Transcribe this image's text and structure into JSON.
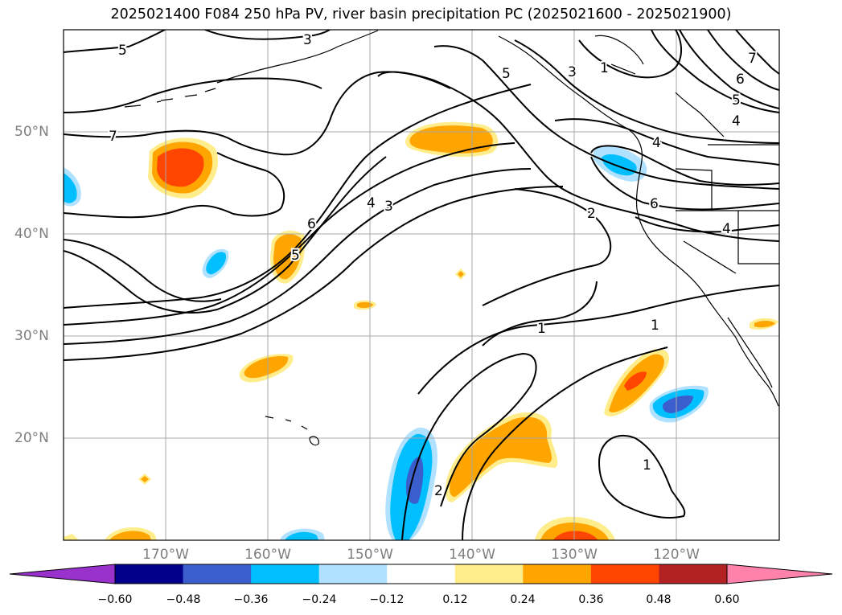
{
  "title": "2025021400 F084 250 hPa PV, river basin precipitation PC (2025021600 - 2025021900)",
  "longitude_labels": [
    "170°W",
    "160°W",
    "150°W",
    "140°W",
    "130°W",
    "120°W"
  ],
  "latitude_labels": [
    "50°N",
    "40°N",
    "30°N",
    "20°N"
  ],
  "map_extent": {
    "lon": [
      -178,
      -108
    ],
    "lat": [
      10,
      60
    ]
  },
  "contour_labels": [
    "5",
    "3",
    "5",
    "3",
    "1",
    "7",
    "6",
    "5",
    "4",
    "4",
    "7",
    "6",
    "2",
    "6",
    "4",
    "4",
    "3",
    "5",
    "1",
    "1",
    "2",
    "1"
  ],
  "colorbar": {
    "ticks": [
      "−0.60",
      "−0.48",
      "−0.36",
      "−0.24",
      "−0.12",
      "0.12",
      "0.24",
      "0.36",
      "0.48",
      "0.60"
    ],
    "colors": [
      "#9932cc",
      "#00008b",
      "#3a5fcd",
      "#00bfff",
      "#b0e2ff",
      "#ffffff",
      "#ffec8b",
      "#ffa500",
      "#ff4500",
      "#b22222",
      "#ff82ab"
    ],
    "extend": "both"
  },
  "style": {
    "grid_color": "#a8a8a8",
    "label_color": "#7f7f7f",
    "contour_color": "#000000"
  }
}
